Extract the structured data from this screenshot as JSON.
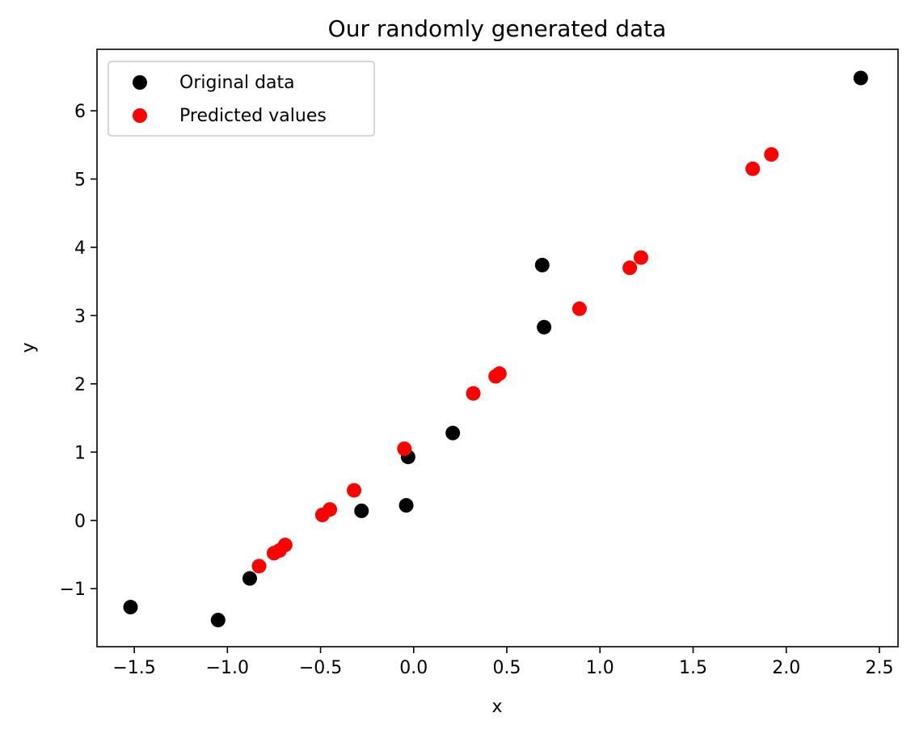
{
  "chart_data": {
    "type": "scatter",
    "title": "Our randomly generated data",
    "xlabel": "x",
    "ylabel": "y",
    "xlim": [
      -1.7,
      2.6
    ],
    "ylim": [
      -1.85,
      6.9
    ],
    "x_ticks": [
      -1.5,
      -1.0,
      -0.5,
      0.0,
      0.5,
      1.0,
      1.5,
      2.0,
      2.5
    ],
    "x_tick_labels": [
      "−1.5",
      "−1.0",
      "−0.5",
      "0.0",
      "0.5",
      "1.0",
      "1.5",
      "2.0",
      "2.5"
    ],
    "y_ticks": [
      -1,
      0,
      1,
      2,
      3,
      4,
      5,
      6
    ],
    "y_tick_labels": [
      "−1",
      "0",
      "1",
      "2",
      "3",
      "4",
      "5",
      "6"
    ],
    "grid": false,
    "legend_position": "top-left",
    "series": [
      {
        "name": "Original data",
        "color": "#000000",
        "points": [
          [
            -1.52,
            -1.27
          ],
          [
            -1.05,
            -1.46
          ],
          [
            -0.88,
            -0.85
          ],
          [
            -0.28,
            0.14
          ],
          [
            -0.04,
            0.22
          ],
          [
            -0.03,
            0.93
          ],
          [
            0.21,
            1.28
          ],
          [
            0.69,
            3.74
          ],
          [
            0.7,
            2.83
          ],
          [
            2.4,
            6.48
          ]
        ]
      },
      {
        "name": "Predicted values",
        "color": "#ff0000",
        "points": [
          [
            -0.83,
            -0.67
          ],
          [
            -0.75,
            -0.48
          ],
          [
            -0.72,
            -0.44
          ],
          [
            -0.69,
            -0.36
          ],
          [
            -0.49,
            0.08
          ],
          [
            -0.45,
            0.16
          ],
          [
            -0.32,
            0.44
          ],
          [
            -0.05,
            1.05
          ],
          [
            0.32,
            1.86
          ],
          [
            0.44,
            2.11
          ],
          [
            0.46,
            2.15
          ],
          [
            0.89,
            3.1
          ],
          [
            1.16,
            3.7
          ],
          [
            1.22,
            3.85
          ],
          [
            1.82,
            5.15
          ],
          [
            1.92,
            5.36
          ]
        ]
      }
    ]
  }
}
